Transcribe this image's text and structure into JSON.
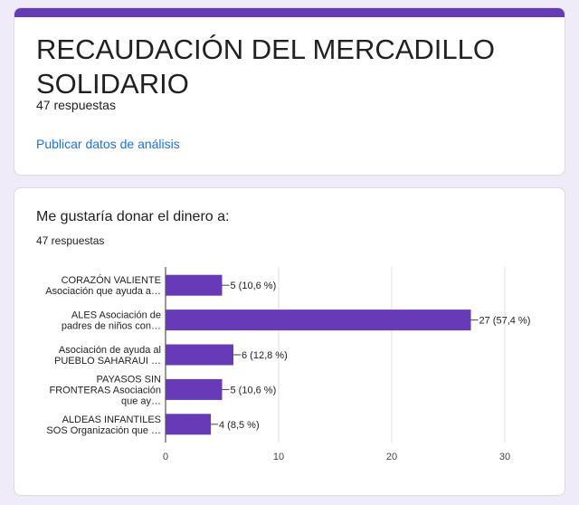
{
  "form": {
    "title": "RECAUDACIÓN DEL MERCADILLO SOLIDARIO",
    "responses": "47 respuestas",
    "publish_link": "Publicar datos de análisis"
  },
  "question": {
    "title": "Me gustaría donar el dinero a:",
    "responses": "47 respuestas"
  },
  "colors": {
    "accent": "#673ab7",
    "bar": "#673ab7",
    "link": "#1a73e8",
    "background": "#f0ebf8"
  },
  "chart_data": {
    "type": "bar",
    "orientation": "horizontal",
    "categories": [
      [
        "CORAZÓN VALIENTE",
        "Asociación que ayuda a…"
      ],
      [
        "ALES Asociación de",
        "padres de niños con…"
      ],
      [
        "Asociación de ayuda al",
        "PUEBLO SAHARAUI …"
      ],
      [
        "PAYASOS SIN",
        "FRONTERAS Asociación",
        "que ay…"
      ],
      [
        "ALDEAS INFANTILES",
        "SOS Organización que …"
      ]
    ],
    "values": [
      5,
      27,
      6,
      5,
      4
    ],
    "data_labels": [
      "5 (10,6 %)",
      "27 (57,4 %)",
      "6 (12,8 %)",
      "5 (10,6 %)",
      "4 (8,5 %)"
    ],
    "x_ticks": [
      "0",
      "10",
      "20",
      "30"
    ],
    "xlim": [
      0,
      30
    ],
    "grid": true,
    "legend": "none"
  }
}
